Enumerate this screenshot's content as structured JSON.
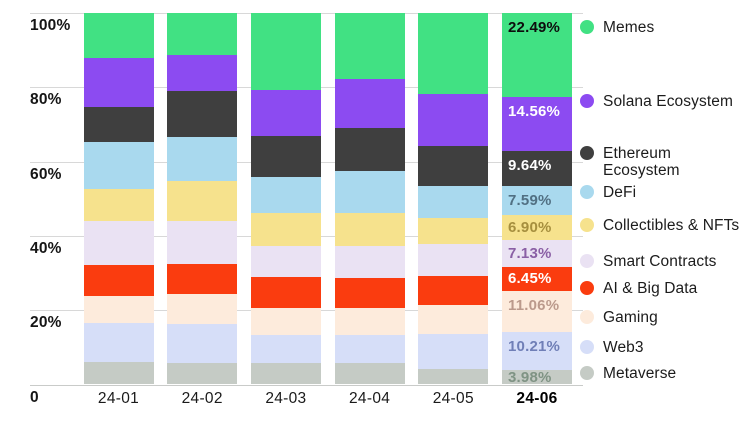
{
  "chart_data": {
    "type": "bar",
    "variant": "stacked-100-percent",
    "title": "",
    "xlabel": "",
    "ylabel": "",
    "ylim": [
      0,
      100
    ],
    "grid": true,
    "legend_position": "right",
    "categories": [
      "24-01",
      "24-02",
      "24-03",
      "24-04",
      "24-05",
      "24-06"
    ],
    "highlighted_category": "24-06",
    "ytick_labels": [
      "100%",
      "80%",
      "60%",
      "40%",
      "20%",
      "0"
    ],
    "ytick_values": [
      100,
      80,
      60,
      40,
      20,
      0
    ],
    "series": [
      {
        "name": "Memes",
        "color": "#41e183",
        "values": [
          12.0,
          11.4,
          20.6,
          17.8,
          21.9,
          22.49
        ],
        "final_label": "22.49%",
        "final_label_color": "#0d0d0d"
      },
      {
        "name": "Solana Ecosystem",
        "color": "#8c4bf1",
        "values": [
          13.2,
          9.7,
          12.4,
          13.2,
          13.8,
          14.56
        ],
        "final_label": "14.56%",
        "final_label_color": "#ffffff"
      },
      {
        "name": "Ethereum Ecosystem",
        "color": "#3f3f3f",
        "values": [
          9.4,
          12.2,
          11.1,
          11.5,
          10.9,
          9.64
        ],
        "final_label": "9.64%",
        "final_label_color": "#ffffff"
      },
      {
        "name": "DeFi",
        "color": "#a9d9ee",
        "values": [
          12.9,
          11.9,
          9.7,
          11.3,
          8.6,
          7.59
        ],
        "final_label": "7.59%",
        "final_label_color": "#517083"
      },
      {
        "name": "Collectibles & NFTs",
        "color": "#f6e28d",
        "values": [
          8.4,
          10.8,
          8.8,
          8.8,
          7.1,
          6.9
        ],
        "final_label": "6.90%",
        "final_label_color": "#a68f3e"
      },
      {
        "name": "Smart Contracts",
        "color": "#eae2f3",
        "values": [
          12.0,
          11.5,
          8.6,
          8.7,
          8.6,
          7.13
        ],
        "final_label": "7.13%",
        "final_label_color": "#8a5fa5"
      },
      {
        "name": "AI & Big Data",
        "color": "#fa3c0f",
        "values": [
          8.2,
          8.1,
          8.1,
          8.1,
          7.7,
          6.45
        ],
        "final_label": "6.45%",
        "final_label_color": "#ffffff"
      },
      {
        "name": "Gaming",
        "color": "#fdebdc",
        "values": [
          7.4,
          8.1,
          7.4,
          7.2,
          7.7,
          11.06
        ],
        "final_label": "11.06%",
        "final_label_color": "#bb9a8c"
      },
      {
        "name": "Web3",
        "color": "#d6def8",
        "values": [
          10.5,
          10.4,
          7.4,
          7.7,
          9.6,
          10.21
        ],
        "final_label": "10.21%",
        "final_label_color": "#707fb7"
      },
      {
        "name": "Metaverse",
        "color": "#c5cbc5",
        "values": [
          6.0,
          5.9,
          5.9,
          5.7,
          4.1,
          3.98
        ],
        "final_label": "3.98%",
        "final_label_color": "#7f9384"
      }
    ],
    "colors": {
      "gridline": "#d8d8d8",
      "axis_line": "#c9cbc9",
      "axis_text": "#151515",
      "legend_text": "#1c1c1c",
      "background": "#ffffff"
    }
  }
}
